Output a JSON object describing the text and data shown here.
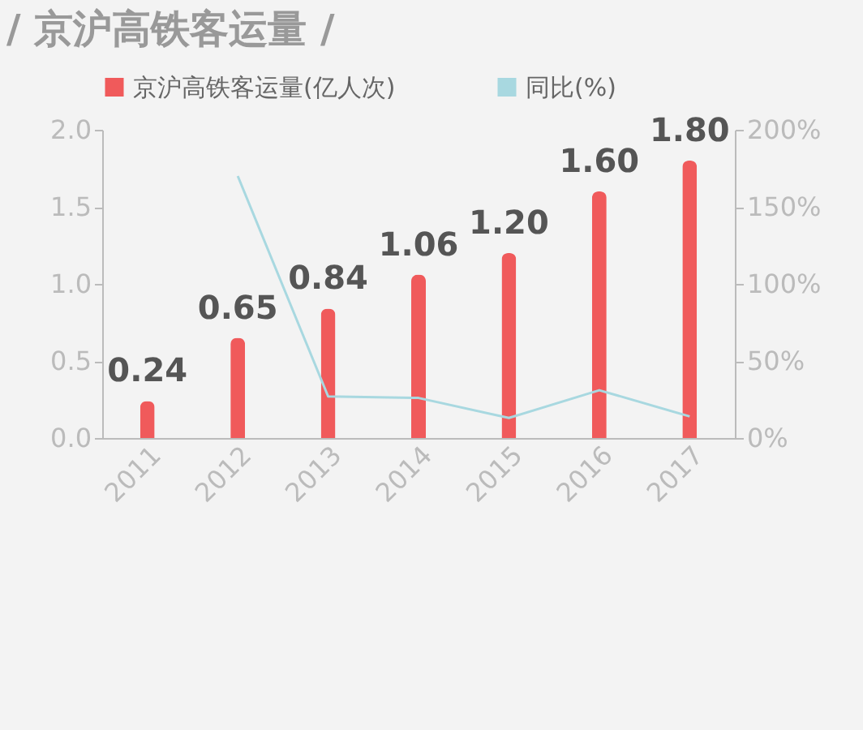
{
  "chart_data": {
    "type": "bar",
    "title": "/ 京沪高铁客运量 /",
    "categories": [
      "2011",
      "2012",
      "2013",
      "2014",
      "2015",
      "2016",
      "2017"
    ],
    "series": [
      {
        "name": "京沪高铁客运量(亿人次)",
        "color": "#f05a5b",
        "values": [
          0.24,
          0.65,
          0.84,
          1.06,
          1.2,
          1.6,
          1.8
        ]
      },
      {
        "name": "同比(%)",
        "type": "line",
        "axis": "y2",
        "color": "#a8d8e0",
        "values": [
          null,
          170,
          27,
          26,
          13,
          31,
          14
        ]
      }
    ],
    "ylim": [
      0,
      2.0
    ],
    "yticks": [
      {
        "value": 0,
        "label": "0.0"
      },
      {
        "value": 0.5,
        "label": "0.5"
      },
      {
        "value": 1,
        "label": "1.0"
      },
      {
        "value": 1.5,
        "label": "1.5"
      },
      {
        "value": 2,
        "label": "2.0"
      }
    ],
    "y2lim": [
      0,
      200
    ],
    "y2ticks": [
      {
        "value": 0,
        "label": "0%"
      },
      {
        "value": 50,
        "label": "50%"
      },
      {
        "value": 100,
        "label": "100%"
      },
      {
        "value": 150,
        "label": "150%"
      },
      {
        "value": 200,
        "label": "200%"
      }
    ],
    "value_labels": [
      "0.24",
      "0.65",
      "0.84",
      "1.06",
      "1.20",
      "1.60",
      "1.80"
    ],
    "legend": "top",
    "grid": false
  }
}
